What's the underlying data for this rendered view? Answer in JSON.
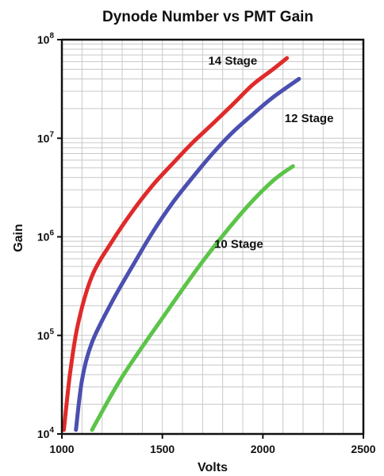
{
  "chart_data": {
    "type": "line",
    "title": "Dynode Number vs PMT Gain",
    "xlabel": "Volts",
    "ylabel": "Gain",
    "xlim": [
      1000,
      2500
    ],
    "ylim": [
      10000,
      100000000
    ],
    "yscale": "log",
    "x_ticks": [
      "1000",
      "1500",
      "2000",
      "2500"
    ],
    "y_ticks": [
      {
        "base": "10",
        "exp": "4",
        "value": 10000
      },
      {
        "base": "10",
        "exp": "5",
        "value": 100000
      },
      {
        "base": "10",
        "exp": "6",
        "value": 1000000
      },
      {
        "base": "10",
        "exp": "7",
        "value": 10000000
      },
      {
        "base": "10",
        "exp": "8",
        "value": 100000000
      }
    ],
    "grid": true,
    "series": [
      {
        "name": "14 Stage",
        "color": "#e02a2a",
        "points": [
          [
            1010,
            11000
          ],
          [
            1040,
            40000
          ],
          [
            1080,
            130000
          ],
          [
            1150,
            400000
          ],
          [
            1250,
            900000
          ],
          [
            1350,
            1800000
          ],
          [
            1450,
            3300000
          ],
          [
            1550,
            5500000
          ],
          [
            1650,
            9000000
          ],
          [
            1750,
            14000000
          ],
          [
            1850,
            22000000
          ],
          [
            1950,
            35000000
          ],
          [
            2050,
            50000000
          ],
          [
            2120,
            65000000
          ]
        ]
      },
      {
        "name": "12 Stage",
        "color": "#4b4fb0",
        "points": [
          [
            1070,
            11000
          ],
          [
            1100,
            35000
          ],
          [
            1150,
            85000
          ],
          [
            1250,
            220000
          ],
          [
            1350,
            500000
          ],
          [
            1450,
            1100000
          ],
          [
            1550,
            2200000
          ],
          [
            1650,
            4000000
          ],
          [
            1750,
            7000000
          ],
          [
            1850,
            11500000
          ],
          [
            1950,
            17500000
          ],
          [
            2050,
            26000000
          ],
          [
            2180,
            40000000
          ]
        ]
      },
      {
        "name": "10 Stage",
        "color": "#5cc449",
        "points": [
          [
            1150,
            11000
          ],
          [
            1300,
            38000
          ],
          [
            1500,
            150000
          ],
          [
            1700,
            560000
          ],
          [
            1900,
            1800000
          ],
          [
            2050,
            3700000
          ],
          [
            2150,
            5200000
          ]
        ]
      }
    ],
    "labels": [
      {
        "series": "14 Stage",
        "x": 1850,
        "y": 56000000
      },
      {
        "series": "12 Stage",
        "x": 2230,
        "y": 14500000
      },
      {
        "series": "10 Stage",
        "x": 1880,
        "y": 770000
      }
    ]
  }
}
